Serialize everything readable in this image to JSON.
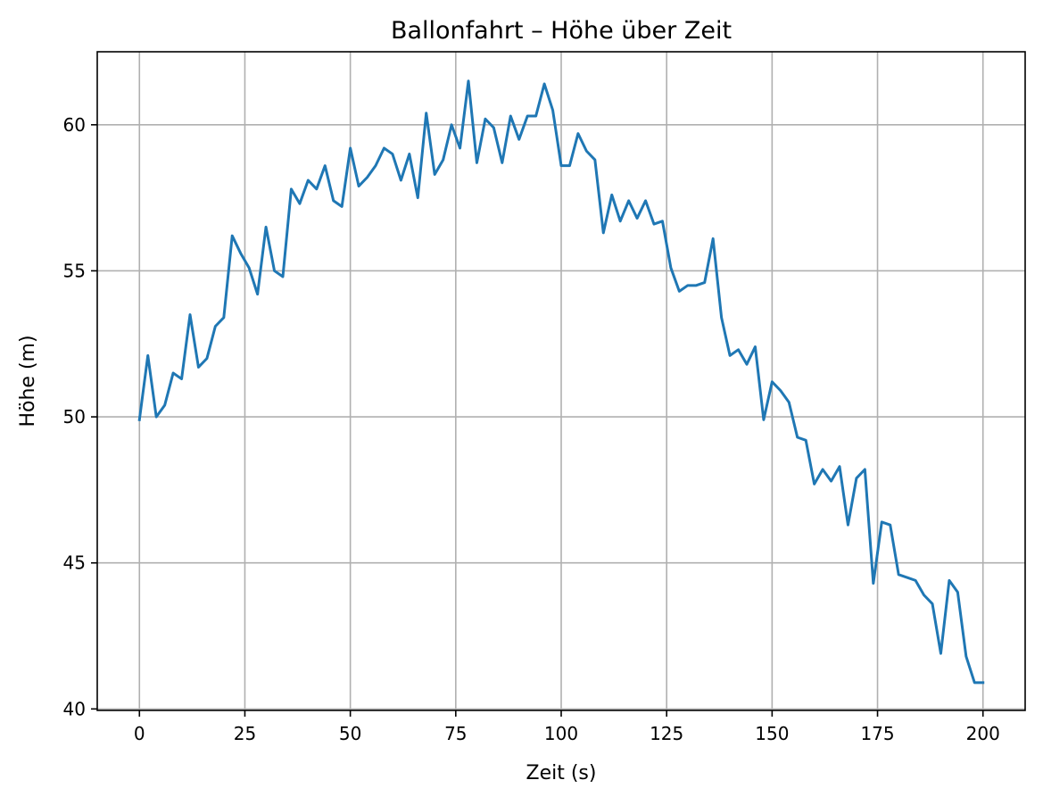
{
  "chart_data": {
    "type": "line",
    "title": "Ballonfahrt – Höhe über Zeit",
    "xlabel": "Zeit (s)",
    "ylabel": "Höhe (m)",
    "xlim": [
      -10,
      210
    ],
    "ylim": [
      39.95,
      62.5
    ],
    "xticks": [
      0,
      25,
      50,
      75,
      100,
      125,
      150,
      175,
      200
    ],
    "yticks": [
      40,
      45,
      50,
      55,
      60
    ],
    "grid": true,
    "colors": {
      "line": "#1f77b4",
      "grid": "#b0b0b0",
      "axes": "#000000"
    },
    "series": [
      {
        "x": [
          0,
          2,
          4,
          6,
          8,
          10,
          12,
          14,
          16,
          18,
          20,
          22,
          24,
          26,
          28,
          30,
          32,
          34,
          36,
          38,
          40,
          42,
          44,
          46,
          48,
          50,
          52,
          54,
          56,
          58,
          60,
          62,
          64,
          66,
          68,
          70,
          72,
          74,
          76,
          78,
          80,
          82,
          84,
          86,
          88,
          90,
          92,
          94,
          96,
          98,
          100,
          102,
          104,
          106,
          108,
          110,
          112,
          114,
          116,
          118,
          120,
          122,
          124,
          126,
          128,
          130,
          132,
          134,
          136,
          138,
          140,
          142,
          144,
          146,
          148,
          150,
          152,
          154,
          156,
          158,
          160,
          162,
          164,
          166,
          168,
          170,
          172,
          174,
          176,
          178,
          180,
          182,
          184,
          186,
          188,
          190,
          192,
          194,
          196,
          198,
          200
        ],
        "y": [
          49.9,
          52.1,
          50.0,
          50.4,
          51.5,
          51.3,
          53.5,
          51.7,
          52.0,
          53.1,
          53.4,
          56.2,
          55.6,
          55.1,
          54.2,
          56.5,
          55.0,
          54.8,
          57.8,
          57.3,
          58.1,
          57.8,
          58.6,
          57.4,
          57.2,
          59.2,
          57.9,
          58.2,
          58.6,
          59.2,
          59.0,
          58.1,
          59.0,
          57.5,
          60.4,
          58.3,
          58.8,
          60.0,
          59.2,
          61.5,
          58.7,
          60.2,
          59.9,
          58.7,
          60.3,
          59.5,
          60.3,
          60.3,
          61.4,
          60.5,
          58.6,
          58.6,
          59.7,
          59.1,
          58.8,
          56.3,
          57.6,
          56.7,
          57.4,
          56.8,
          57.4,
          56.6,
          56.7,
          55.1,
          54.3,
          54.5,
          54.5,
          54.6,
          56.1,
          53.4,
          52.1,
          52.3,
          51.8,
          52.4,
          49.9,
          51.2,
          50.9,
          50.5,
          49.3,
          49.2,
          47.7,
          48.2,
          47.8,
          48.3,
          46.3,
          47.9,
          48.2,
          44.3,
          46.4,
          46.3,
          44.6,
          44.5,
          44.4,
          43.9,
          43.6,
          41.9,
          44.4,
          44.0,
          41.8,
          40.9,
          40.9
        ]
      }
    ]
  }
}
